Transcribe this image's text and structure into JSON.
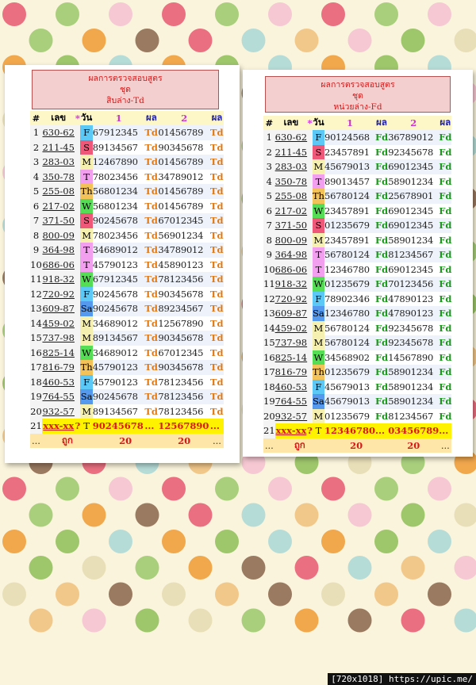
{
  "colors": {
    "dots": [
      "#ea6f80",
      "#e8dfb8",
      "#b6dcd8",
      "#a9cf7c",
      "#f2c88a",
      "#f1a74c",
      "#f6c8d3",
      "#9a7a60",
      "#9ec66b"
    ],
    "day_F": "#5bc8f5",
    "day_S": "#f0587a",
    "day_M": "#f6f0b0",
    "day_T": "#f39ff0",
    "day_Th": "#f3c35a",
    "day_W": "#55dd55",
    "day_Sa": "#5599ee"
  },
  "watermark": "[720x1018] https://upic.me/",
  "tables": [
    {
      "title_line1": "ผลการตรวจสอบสูตร",
      "title_line2": "ชุด",
      "title_line3": "สิบล่าง-Td",
      "res_label": "Td",
      "headers": {
        "num": "#",
        "code": "เลข",
        "star": "*",
        "day": "วัน",
        "g1": "1",
        "r1": "ผล",
        "g2": "2",
        "r2": "ผล"
      },
      "rows": [
        {
          "n": "1",
          "code": "630-62",
          "day": "F",
          "g1": "67912345",
          "g2": "01456789"
        },
        {
          "n": "2",
          "code": "211-45",
          "day": "S",
          "g1": "89134567",
          "g2": "90345678"
        },
        {
          "n": "3",
          "code": "283-03",
          "day": "M",
          "g1": "12467890",
          "g2": "01456789"
        },
        {
          "n": "4",
          "code": "350-78",
          "day": "T",
          "g1": "78023456",
          "g2": "34789012"
        },
        {
          "n": "5",
          "code": "255-08",
          "day": "Th",
          "g1": "56801234",
          "g2": "01456789"
        },
        {
          "n": "6",
          "code": "217-02",
          "day": "W",
          "g1": "56801234",
          "g2": "01456789"
        },
        {
          "n": "7",
          "code": "371-50",
          "day": "S",
          "g1": "90245678",
          "g2": "67012345"
        },
        {
          "n": "8",
          "code": "800-09",
          "day": "M",
          "g1": "78023456",
          "g2": "56901234"
        },
        {
          "n": "9",
          "code": "364-98",
          "day": "T",
          "g1": "34689012",
          "g2": "34789012"
        },
        {
          "n": "10",
          "code": "686-06",
          "day": "T",
          "g1": "45790123",
          "g2": "45890123"
        },
        {
          "n": "11",
          "code": "918-32",
          "day": "W",
          "g1": "67912345",
          "g2": "78123456"
        },
        {
          "n": "12",
          "code": "720-92",
          "day": "F",
          "g1": "90245678",
          "g2": "90345678"
        },
        {
          "n": "13",
          "code": "609-87",
          "day": "Sa",
          "g1": "90245678",
          "g2": "89234567"
        },
        {
          "n": "14",
          "code": "459-02",
          "day": "M",
          "g1": "34689012",
          "g2": "12567890"
        },
        {
          "n": "15",
          "code": "737-98",
          "day": "M",
          "g1": "89134567",
          "g2": "90345678"
        },
        {
          "n": "16",
          "code": "825-14",
          "day": "W",
          "g1": "34689012",
          "g2": "67012345"
        },
        {
          "n": "17",
          "code": "816-79",
          "day": "Th",
          "g1": "45790123",
          "g2": "90345678"
        },
        {
          "n": "18",
          "code": "460-53",
          "day": "F",
          "g1": "45790123",
          "g2": "78123456"
        },
        {
          "n": "19",
          "code": "764-55",
          "day": "Sa",
          "g1": "90245678",
          "g2": "78123456"
        },
        {
          "n": "20",
          "code": "932-57",
          "day": "M",
          "g1": "89134567",
          "g2": "78123456"
        }
      ],
      "summary": {
        "n": "21",
        "code": "xxx-xx",
        "star": "?",
        "day": "T",
        "g1": "90245678",
        "r1": "...",
        "g2": "12567890",
        "r2": "..."
      },
      "footer": {
        "c1": "...",
        "label": "ถูก",
        "total1": "20",
        "total2": "20",
        "c_end": "..."
      }
    },
    {
      "title_line1": "ผลการตรวจสอบสูตร",
      "title_line2": "ชุด",
      "title_line3": "หน่วยล่าง-Fd",
      "res_label": "Fd",
      "headers": {
        "num": "#",
        "code": "เลข",
        "star": "*",
        "day": "วัน",
        "g1": "1",
        "r1": "ผล",
        "g2": "2",
        "r2": "ผล"
      },
      "rows": [
        {
          "n": "1",
          "code": "630-62",
          "day": "F",
          "g1": "90124568",
          "g2": "36789012"
        },
        {
          "n": "2",
          "code": "211-45",
          "day": "S",
          "g1": "23457891",
          "g2": "92345678"
        },
        {
          "n": "3",
          "code": "283-03",
          "day": "M",
          "g1": "45679013",
          "g2": "69012345"
        },
        {
          "n": "4",
          "code": "350-78",
          "day": "T",
          "g1": "89013457",
          "g2": "58901234"
        },
        {
          "n": "5",
          "code": "255-08",
          "day": "Th",
          "g1": "56780124",
          "g2": "25678901"
        },
        {
          "n": "6",
          "code": "217-02",
          "day": "W",
          "g1": "23457891",
          "g2": "69012345"
        },
        {
          "n": "7",
          "code": "371-50",
          "day": "S",
          "g1": "01235679",
          "g2": "69012345"
        },
        {
          "n": "8",
          "code": "800-09",
          "day": "M",
          "g1": "23457891",
          "g2": "58901234"
        },
        {
          "n": "9",
          "code": "364-98",
          "day": "T",
          "g1": "56780124",
          "g2": "81234567"
        },
        {
          "n": "10",
          "code": "686-06",
          "day": "T",
          "g1": "12346780",
          "g2": "69012345"
        },
        {
          "n": "11",
          "code": "918-32",
          "day": "W",
          "g1": "01235679",
          "g2": "70123456"
        },
        {
          "n": "12",
          "code": "720-92",
          "day": "F",
          "g1": "78902346",
          "g2": "47890123"
        },
        {
          "n": "13",
          "code": "609-87",
          "day": "Sa",
          "g1": "12346780",
          "g2": "47890123"
        },
        {
          "n": "14",
          "code": "459-02",
          "day": "M",
          "g1": "56780124",
          "g2": "92345678"
        },
        {
          "n": "15",
          "code": "737-98",
          "day": "M",
          "g1": "56780124",
          "g2": "92345678"
        },
        {
          "n": "16",
          "code": "825-14",
          "day": "W",
          "g1": "34568902",
          "g2": "14567890"
        },
        {
          "n": "17",
          "code": "816-79",
          "day": "Th",
          "g1": "01235679",
          "g2": "58901234"
        },
        {
          "n": "18",
          "code": "460-53",
          "day": "F",
          "g1": "45679013",
          "g2": "58901234"
        },
        {
          "n": "19",
          "code": "764-55",
          "day": "Sa",
          "g1": "45679013",
          "g2": "58901234"
        },
        {
          "n": "20",
          "code": "932-57",
          "day": "M",
          "g1": "01235679",
          "g2": "81234567"
        }
      ],
      "summary": {
        "n": "21",
        "code": "xxx-xx",
        "star": "?",
        "day": "T",
        "g1": "12346780",
        "r1": "...",
        "g2": "03456789",
        "r2": "..."
      },
      "footer": {
        "c1": "...",
        "label": "ถูก",
        "total1": "20",
        "total2": "20",
        "c_end": "..."
      }
    }
  ]
}
